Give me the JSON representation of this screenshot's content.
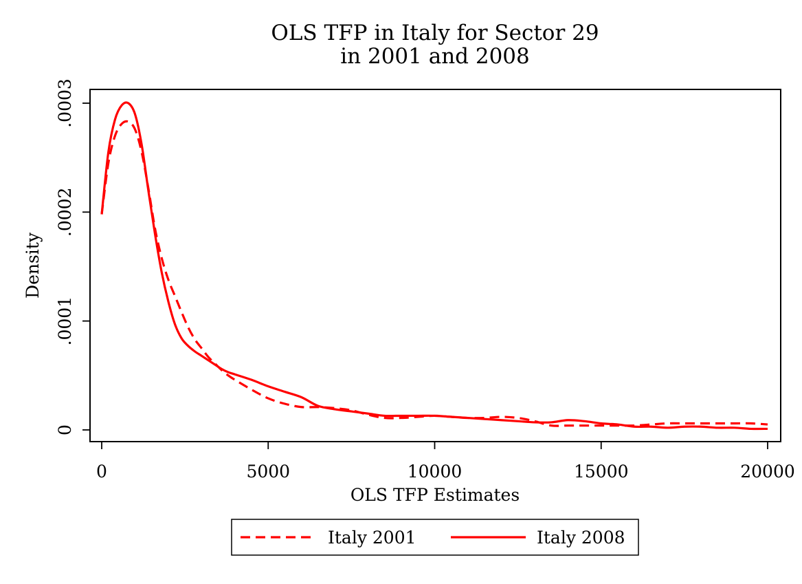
{
  "chart_data": {
    "type": "line",
    "title": "OLS TFP in Italy for Sector 29",
    "subtitle": "in 2001 and 2008",
    "xlabel": "OLS TFP Estimates",
    "ylabel": "Density",
    "xlim": [
      0,
      20000
    ],
    "ylim": [
      0,
      0.0003
    ],
    "x_ticks": [
      0,
      5000,
      10000,
      15000,
      20000
    ],
    "x_tick_labels": [
      "0",
      "5000",
      "10000",
      "15000",
      "20000"
    ],
    "y_ticks": [
      0,
      0.0001,
      0.0002,
      0.0003
    ],
    "y_tick_labels": [
      "0",
      ".0001",
      ".0002",
      ".0003"
    ],
    "grid": false,
    "legend_position": "bottom",
    "series": [
      {
        "name": "Italy 2001",
        "color": "#ff0000",
        "style": "dashed",
        "x": [
          0,
          200,
          400,
          600,
          800,
          1000,
          1200,
          1400,
          1600,
          1800,
          2000,
          2200,
          2400,
          2600,
          2800,
          3000,
          3200,
          3400,
          3600,
          3800,
          4000,
          4500,
          5000,
          5500,
          6000,
          6500,
          7000,
          7500,
          8000,
          8500,
          9000,
          9500,
          10000,
          10500,
          11000,
          11500,
          12000,
          12500,
          13000,
          13500,
          14000,
          14500,
          15000,
          15500,
          16000,
          16500,
          17000,
          17500,
          18000,
          18500,
          19000,
          19500,
          20000
        ],
        "values": [
          0.000198,
          0.000245,
          0.00027,
          0.000281,
          0.000283,
          0.000276,
          0.000255,
          0.000222,
          0.000185,
          0.000158,
          0.000138,
          0.000123,
          0.000108,
          9.4e-05,
          8.3e-05,
          7.5e-05,
          6.7e-05,
          6.1e-05,
          5.5e-05,
          5e-05,
          4.6e-05,
          3.7e-05,
          2.9e-05,
          2.4e-05,
          2.1e-05,
          2.1e-05,
          2e-05,
          1.8e-05,
          1.4e-05,
          1.1e-05,
          1.1e-05,
          1.2e-05,
          1.3e-05,
          1.2e-05,
          1.1e-05,
          1.1e-05,
          1.2e-05,
          1.1e-05,
          8e-06,
          4e-06,
          4e-06,
          4e-06,
          4e-06,
          4e-06,
          4e-06,
          5e-06,
          6e-06,
          6e-06,
          6e-06,
          6e-06,
          6e-06,
          6e-06,
          5e-06
        ]
      },
      {
        "name": "Italy 2008",
        "color": "#ff0000",
        "style": "solid",
        "x": [
          0,
          200,
          400,
          600,
          800,
          1000,
          1200,
          1400,
          1600,
          1800,
          2000,
          2200,
          2400,
          2600,
          2800,
          3000,
          3200,
          3400,
          3600,
          3800,
          4000,
          4500,
          5000,
          5500,
          6000,
          6500,
          7000,
          7500,
          8000,
          8500,
          9000,
          9500,
          10000,
          10500,
          11000,
          11500,
          12000,
          12500,
          13000,
          13500,
          14000,
          14500,
          15000,
          15500,
          16000,
          16500,
          17000,
          17500,
          18000,
          18500,
          19000,
          19500,
          20000
        ],
        "values": [
          0.000198,
          0.000255,
          0.000285,
          0.000298,
          0.0003,
          0.00029,
          0.000262,
          0.00022,
          0.00018,
          0.000145,
          0.000118,
          9.7e-05,
          8.4e-05,
          7.7e-05,
          7.2e-05,
          6.8e-05,
          6.4e-05,
          6e-05,
          5.6e-05,
          5.3e-05,
          5.1e-05,
          4.6e-05,
          4e-05,
          3.5e-05,
          3e-05,
          2.2e-05,
          1.9e-05,
          1.7e-05,
          1.5e-05,
          1.3e-05,
          1.3e-05,
          1.3e-05,
          1.3e-05,
          1.2e-05,
          1.1e-05,
          1e-05,
          9e-06,
          8e-06,
          7e-06,
          7e-06,
          9e-06,
          8e-06,
          6e-06,
          5e-06,
          3e-06,
          3e-06,
          2e-06,
          3e-06,
          3e-06,
          2e-06,
          2e-06,
          1e-06,
          1e-06
        ]
      }
    ]
  }
}
